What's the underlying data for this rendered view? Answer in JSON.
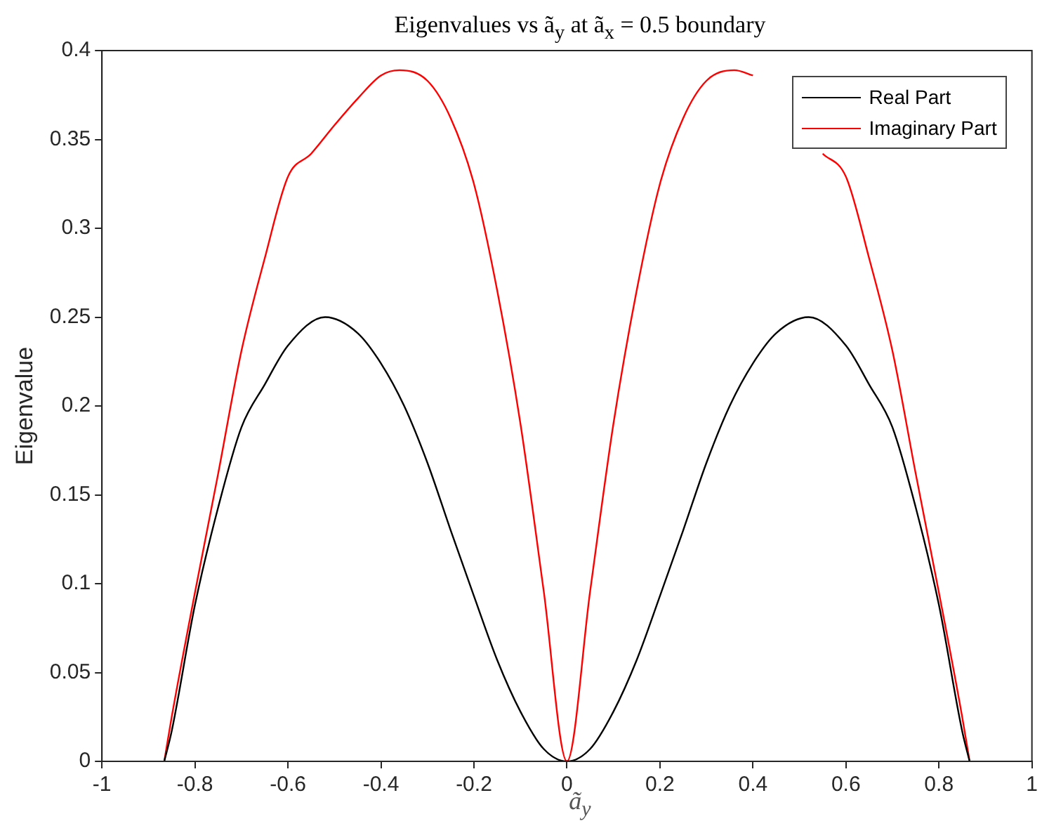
{
  "chart_data": {
    "type": "line",
    "title": "Eigenvalues vs ã$_{y}$ at ã$_{x}$ = 0.5 boundary",
    "xlabel": "ã$_{y}$",
    "ylabel": "Eigenvalue",
    "xlim": [
      -1,
      1
    ],
    "xticks": [
      -1,
      -0.8,
      -0.6,
      -0.4,
      -0.2,
      0,
      0.2,
      0.4,
      0.6,
      0.8,
      1
    ],
    "ylim": [
      0,
      0.4
    ],
    "yticks": [
      0,
      0.05,
      0.1,
      0.15,
      0.2,
      0.25,
      0.3,
      0.35,
      0.4
    ],
    "grid": false,
    "legend": "top right",
    "marker": "none",
    "line_style": "solid",
    "series": [
      {
        "name": "Real Part",
        "color": "#000000",
        "x": [
          -0.866,
          -0.85,
          -0.8,
          -0.75,
          -0.7,
          -0.65,
          -0.6,
          -0.52,
          -0.45,
          -0.4,
          -0.35,
          -0.3,
          -0.25,
          -0.2,
          -0.15,
          -0.1,
          -0.05,
          0,
          0.05,
          0.1,
          0.15,
          0.2,
          0.25,
          0.3,
          0.35,
          0.4,
          0.45,
          0.52,
          0.6,
          0.65,
          0.7,
          0.75,
          0.8,
          0.85,
          0.866
        ],
        "values": [
          0,
          0.017,
          0.088,
          0.143,
          0.188,
          0.212,
          0.234,
          0.25,
          0.241,
          0.224,
          0.2,
          0.168,
          0.13,
          0.093,
          0.057,
          0.028,
          0.007,
          0,
          0.007,
          0.028,
          0.057,
          0.093,
          0.13,
          0.168,
          0.2,
          0.224,
          0.241,
          0.25,
          0.234,
          0.212,
          0.188,
          0.143,
          0.088,
          0.017,
          0
        ]
      },
      {
        "name": "Imaginary Part",
        "color": "#ff0000",
        "x": [
          -0.866,
          -0.85,
          -0.8,
          -0.75,
          -0.7,
          -0.65,
          -0.6,
          -0.55,
          -0.5,
          -0.45,
          -0.4,
          -0.36,
          -0.3,
          -0.25,
          -0.2,
          -0.15,
          -0.1,
          -0.05,
          0,
          0.05,
          0.1,
          0.15,
          0.2,
          0.25,
          0.3,
          0.36,
          0.4,
          0.45,
          0.5,
          0.55,
          0.6,
          0.65,
          0.7,
          0.75,
          0.8,
          0.85,
          0.866
        ],
        "values": [
          0,
          0.025,
          0.095,
          0.162,
          0.231,
          0.283,
          0.329,
          0.342,
          0.358,
          0.373,
          0.386,
          0.389,
          0.383,
          0.362,
          0.325,
          0.265,
          0.19,
          0.096,
          0,
          0.096,
          0.19,
          0.265,
          0.325,
          0.362,
          0.383,
          0.389,
          0.386,
          null,
          null,
          0.342,
          0.329,
          0.283,
          0.231,
          0.162,
          0.095,
          0.025,
          0
        ]
      }
    ]
  }
}
